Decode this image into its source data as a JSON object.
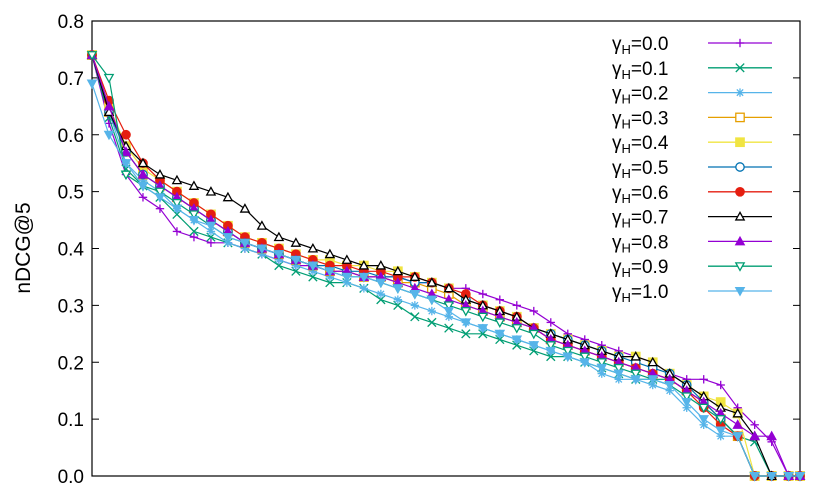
{
  "chart_data": {
    "type": "line",
    "title": "",
    "xlabel": "",
    "ylabel": "nDCG@5",
    "ylim": [
      0,
      0.8
    ],
    "xlim": [
      0,
      125
    ],
    "y_ticks": [
      "0.0",
      "0.1",
      "0.2",
      "0.3",
      "0.4",
      "0.5",
      "0.6",
      "0.7",
      "0.8"
    ],
    "grid": false,
    "legend_position": "top-right",
    "series": [
      {
        "name": "γH=0.0",
        "color": "#9400d3",
        "marker": "plus",
        "x": [
          0,
          3,
          6,
          9,
          12,
          15,
          18,
          21,
          24,
          27,
          30,
          33,
          36,
          39,
          42,
          45,
          48,
          51,
          54,
          57,
          60,
          63,
          66,
          69,
          72,
          75,
          78,
          81,
          84,
          87,
          90,
          93,
          96,
          99,
          102,
          105,
          108,
          111,
          114,
          117,
          120,
          123,
          125
        ],
        "values": [
          0.74,
          0.62,
          0.53,
          0.49,
          0.47,
          0.43,
          0.42,
          0.41,
          0.41,
          0.4,
          0.39,
          0.38,
          0.37,
          0.37,
          0.36,
          0.36,
          0.35,
          0.35,
          0.35,
          0.34,
          0.34,
          0.33,
          0.33,
          0.32,
          0.31,
          0.3,
          0.29,
          0.27,
          0.25,
          0.24,
          0.23,
          0.22,
          0.21,
          0.2,
          0.18,
          0.17,
          0.17,
          0.16,
          0.12,
          0.09,
          0.06,
          0.0,
          0.0
        ]
      },
      {
        "name": "γH=0.1",
        "color": "#009e73",
        "marker": "x",
        "x": [
          0,
          3,
          6,
          9,
          12,
          15,
          18,
          21,
          24,
          27,
          30,
          33,
          36,
          39,
          42,
          45,
          48,
          51,
          54,
          57,
          60,
          63,
          66,
          69,
          72,
          75,
          78,
          81,
          84,
          87,
          90,
          93,
          96,
          99,
          102,
          105,
          108,
          111,
          114,
          117,
          120,
          123,
          125
        ],
        "values": [
          0.74,
          0.63,
          0.54,
          0.51,
          0.49,
          0.46,
          0.43,
          0.42,
          0.41,
          0.4,
          0.39,
          0.37,
          0.36,
          0.35,
          0.34,
          0.34,
          0.33,
          0.31,
          0.3,
          0.28,
          0.27,
          0.26,
          0.25,
          0.25,
          0.24,
          0.23,
          0.22,
          0.21,
          0.21,
          0.2,
          0.19,
          0.18,
          0.17,
          0.17,
          0.17,
          0.15,
          0.13,
          0.1,
          0.07,
          0.06,
          0.0,
          0.0,
          0.0
        ]
      },
      {
        "name": "γH=0.2",
        "color": "#56b4e9",
        "marker": "star",
        "x": [
          0,
          3,
          6,
          9,
          12,
          15,
          18,
          21,
          24,
          27,
          30,
          33,
          36,
          39,
          42,
          45,
          48,
          51,
          54,
          57,
          60,
          63,
          66,
          69,
          72,
          75,
          78,
          81,
          84,
          87,
          90,
          93,
          96,
          99,
          102,
          105,
          108,
          111,
          114,
          117,
          120,
          123,
          125
        ],
        "values": [
          0.74,
          0.64,
          0.55,
          0.52,
          0.5,
          0.47,
          0.45,
          0.43,
          0.41,
          0.4,
          0.39,
          0.38,
          0.37,
          0.36,
          0.35,
          0.34,
          0.33,
          0.32,
          0.31,
          0.3,
          0.29,
          0.28,
          0.27,
          0.26,
          0.25,
          0.24,
          0.23,
          0.22,
          0.21,
          0.2,
          0.18,
          0.17,
          0.17,
          0.16,
          0.15,
          0.12,
          0.09,
          0.07,
          0.07,
          0.0,
          0.0,
          0.0,
          0.0
        ]
      },
      {
        "name": "γH=0.3",
        "color": "#e69f00",
        "marker": "square-open",
        "x": [
          0,
          3,
          6,
          9,
          12,
          15,
          18,
          21,
          24,
          27,
          30,
          33,
          36,
          39,
          42,
          45,
          48,
          51,
          54,
          57,
          60,
          63,
          66,
          69,
          72,
          75,
          78,
          81,
          84,
          87,
          90,
          93,
          96,
          99,
          102,
          105,
          108,
          111,
          114,
          117,
          120,
          123,
          125
        ],
        "values": [
          0.74,
          0.64,
          0.57,
          0.53,
          0.51,
          0.49,
          0.47,
          0.45,
          0.43,
          0.41,
          0.4,
          0.39,
          0.38,
          0.37,
          0.36,
          0.36,
          0.35,
          0.35,
          0.34,
          0.34,
          0.33,
          0.32,
          0.3,
          0.29,
          0.28,
          0.27,
          0.26,
          0.24,
          0.23,
          0.22,
          0.21,
          0.2,
          0.19,
          0.18,
          0.17,
          0.15,
          0.13,
          0.1,
          0.07,
          0.0,
          0.0,
          0.0,
          0.0
        ]
      },
      {
        "name": "γH=0.4",
        "color": "#f0e442",
        "marker": "square",
        "x": [
          0,
          3,
          6,
          9,
          12,
          15,
          18,
          21,
          24,
          27,
          30,
          33,
          36,
          39,
          42,
          45,
          48,
          51,
          54,
          57,
          60,
          63,
          66,
          69,
          72,
          75,
          78,
          81,
          84,
          87,
          90,
          93,
          96,
          99,
          102,
          105,
          108,
          111,
          114,
          117,
          120,
          123,
          125
        ],
        "values": [
          0.74,
          0.65,
          0.58,
          0.54,
          0.52,
          0.5,
          0.48,
          0.46,
          0.44,
          0.42,
          0.41,
          0.4,
          0.39,
          0.38,
          0.38,
          0.37,
          0.37,
          0.36,
          0.36,
          0.35,
          0.34,
          0.33,
          0.31,
          0.3,
          0.29,
          0.28,
          0.26,
          0.25,
          0.24,
          0.23,
          0.22,
          0.21,
          0.21,
          0.2,
          0.18,
          0.16,
          0.14,
          0.13,
          0.11,
          0.0,
          0.0,
          0.0,
          0.0
        ]
      },
      {
        "name": "γH=0.5",
        "color": "#0072b2",
        "marker": "circle-open",
        "x": [
          0,
          3,
          6,
          9,
          12,
          15,
          18,
          21,
          24,
          27,
          30,
          33,
          36,
          39,
          42,
          45,
          48,
          51,
          54,
          57,
          60,
          63,
          66,
          69,
          72,
          75,
          78,
          81,
          84,
          87,
          90,
          93,
          96,
          99,
          102,
          105,
          108,
          111,
          114,
          117,
          120,
          123,
          125
        ],
        "values": [
          0.74,
          0.64,
          0.57,
          0.53,
          0.51,
          0.49,
          0.47,
          0.45,
          0.43,
          0.41,
          0.4,
          0.39,
          0.38,
          0.37,
          0.37,
          0.36,
          0.36,
          0.35,
          0.35,
          0.34,
          0.34,
          0.33,
          0.31,
          0.3,
          0.29,
          0.28,
          0.26,
          0.25,
          0.24,
          0.23,
          0.22,
          0.21,
          0.2,
          0.19,
          0.18,
          0.16,
          0.13,
          0.1,
          0.07,
          0.0,
          0.0,
          0.0,
          0.0
        ]
      },
      {
        "name": "γH=0.6",
        "color": "#e51e10",
        "marker": "circle",
        "x": [
          0,
          3,
          6,
          9,
          12,
          15,
          18,
          21,
          24,
          27,
          30,
          33,
          36,
          39,
          42,
          45,
          48,
          51,
          54,
          57,
          60,
          63,
          66,
          69,
          72,
          75,
          78,
          81,
          84,
          87,
          90,
          93,
          96,
          99,
          102,
          105,
          108,
          111,
          114,
          117,
          120,
          123,
          125
        ],
        "values": [
          0.74,
          0.66,
          0.6,
          0.55,
          0.52,
          0.5,
          0.48,
          0.46,
          0.44,
          0.42,
          0.41,
          0.4,
          0.39,
          0.38,
          0.37,
          0.37,
          0.36,
          0.36,
          0.35,
          0.35,
          0.34,
          0.33,
          0.32,
          0.3,
          0.29,
          0.28,
          0.26,
          0.24,
          0.23,
          0.22,
          0.21,
          0.2,
          0.19,
          0.18,
          0.17,
          0.15,
          0.12,
          0.09,
          0.07,
          0.0,
          0.0,
          0.0,
          0.0
        ]
      },
      {
        "name": "γH=0.7",
        "color": "#000000",
        "marker": "triangle-open",
        "x": [
          0,
          3,
          6,
          9,
          12,
          15,
          18,
          21,
          24,
          27,
          30,
          33,
          36,
          39,
          42,
          45,
          48,
          51,
          54,
          57,
          60,
          63,
          66,
          69,
          72,
          75,
          78,
          81,
          84,
          87,
          90,
          93,
          96,
          99,
          102,
          105,
          108,
          111,
          114,
          117,
          120,
          123,
          125
        ],
        "values": [
          0.74,
          0.64,
          0.58,
          0.55,
          0.53,
          0.52,
          0.51,
          0.5,
          0.49,
          0.47,
          0.44,
          0.42,
          0.41,
          0.4,
          0.39,
          0.38,
          0.37,
          0.37,
          0.36,
          0.35,
          0.34,
          0.33,
          0.31,
          0.3,
          0.29,
          0.28,
          0.26,
          0.25,
          0.24,
          0.23,
          0.22,
          0.21,
          0.21,
          0.2,
          0.18,
          0.16,
          0.14,
          0.12,
          0.11,
          0.07,
          0.0,
          0.0,
          0.0
        ]
      },
      {
        "name": "γH=0.8",
        "color": "#9400d3",
        "marker": "triangle",
        "x": [
          0,
          3,
          6,
          9,
          12,
          15,
          18,
          21,
          24,
          27,
          30,
          33,
          36,
          39,
          42,
          45,
          48,
          51,
          54,
          57,
          60,
          63,
          66,
          69,
          72,
          75,
          78,
          81,
          84,
          87,
          90,
          93,
          96,
          99,
          102,
          105,
          108,
          111,
          114,
          117,
          120,
          123,
          125
        ],
        "values": [
          0.74,
          0.65,
          0.57,
          0.53,
          0.51,
          0.49,
          0.47,
          0.45,
          0.43,
          0.41,
          0.4,
          0.39,
          0.38,
          0.37,
          0.36,
          0.36,
          0.35,
          0.35,
          0.34,
          0.33,
          0.32,
          0.31,
          0.3,
          0.29,
          0.28,
          0.27,
          0.26,
          0.24,
          0.23,
          0.22,
          0.21,
          0.2,
          0.19,
          0.18,
          0.17,
          0.15,
          0.13,
          0.11,
          0.09,
          0.07,
          0.07,
          0.0,
          0.0
        ]
      },
      {
        "name": "γH=0.9",
        "color": "#009e73",
        "marker": "triangle-down-open",
        "x": [
          0,
          3,
          6,
          9,
          12,
          15,
          18,
          21,
          24,
          27,
          30,
          33,
          36,
          39,
          42,
          45,
          48,
          51,
          54,
          57,
          60,
          63,
          66,
          69,
          72,
          75,
          78,
          81,
          84,
          87,
          90,
          93,
          96,
          99,
          102,
          105,
          108,
          111,
          114,
          117,
          120,
          123,
          125
        ],
        "values": [
          0.74,
          0.7,
          0.53,
          0.51,
          0.5,
          0.48,
          0.46,
          0.44,
          0.42,
          0.41,
          0.4,
          0.39,
          0.38,
          0.37,
          0.36,
          0.35,
          0.35,
          0.34,
          0.33,
          0.32,
          0.31,
          0.3,
          0.29,
          0.28,
          0.27,
          0.26,
          0.25,
          0.23,
          0.22,
          0.21,
          0.2,
          0.19,
          0.18,
          0.17,
          0.16,
          0.14,
          0.12,
          0.1,
          0.07,
          0.0,
          0.0,
          0.0,
          0.0
        ]
      },
      {
        "name": "γH=1.0",
        "color": "#56b4e9",
        "marker": "triangle-down",
        "x": [
          0,
          3,
          6,
          9,
          12,
          15,
          18,
          21,
          24,
          27,
          30,
          33,
          36,
          39,
          42,
          45,
          48,
          51,
          54,
          57,
          60,
          63,
          66,
          69,
          72,
          75,
          78,
          81,
          84,
          87,
          90,
          93,
          96,
          99,
          102,
          105,
          108,
          111,
          114,
          117,
          120,
          123,
          125
        ],
        "values": [
          0.69,
          0.6,
          0.55,
          0.51,
          0.49,
          0.47,
          0.45,
          0.44,
          0.42,
          0.41,
          0.4,
          0.39,
          0.38,
          0.37,
          0.36,
          0.35,
          0.35,
          0.34,
          0.33,
          0.32,
          0.31,
          0.29,
          0.27,
          0.26,
          0.25,
          0.24,
          0.23,
          0.22,
          0.21,
          0.2,
          0.19,
          0.18,
          0.17,
          0.17,
          0.16,
          0.13,
          0.1,
          0.08,
          0.07,
          0.0,
          0.0,
          0.0,
          0.0
        ]
      }
    ]
  }
}
